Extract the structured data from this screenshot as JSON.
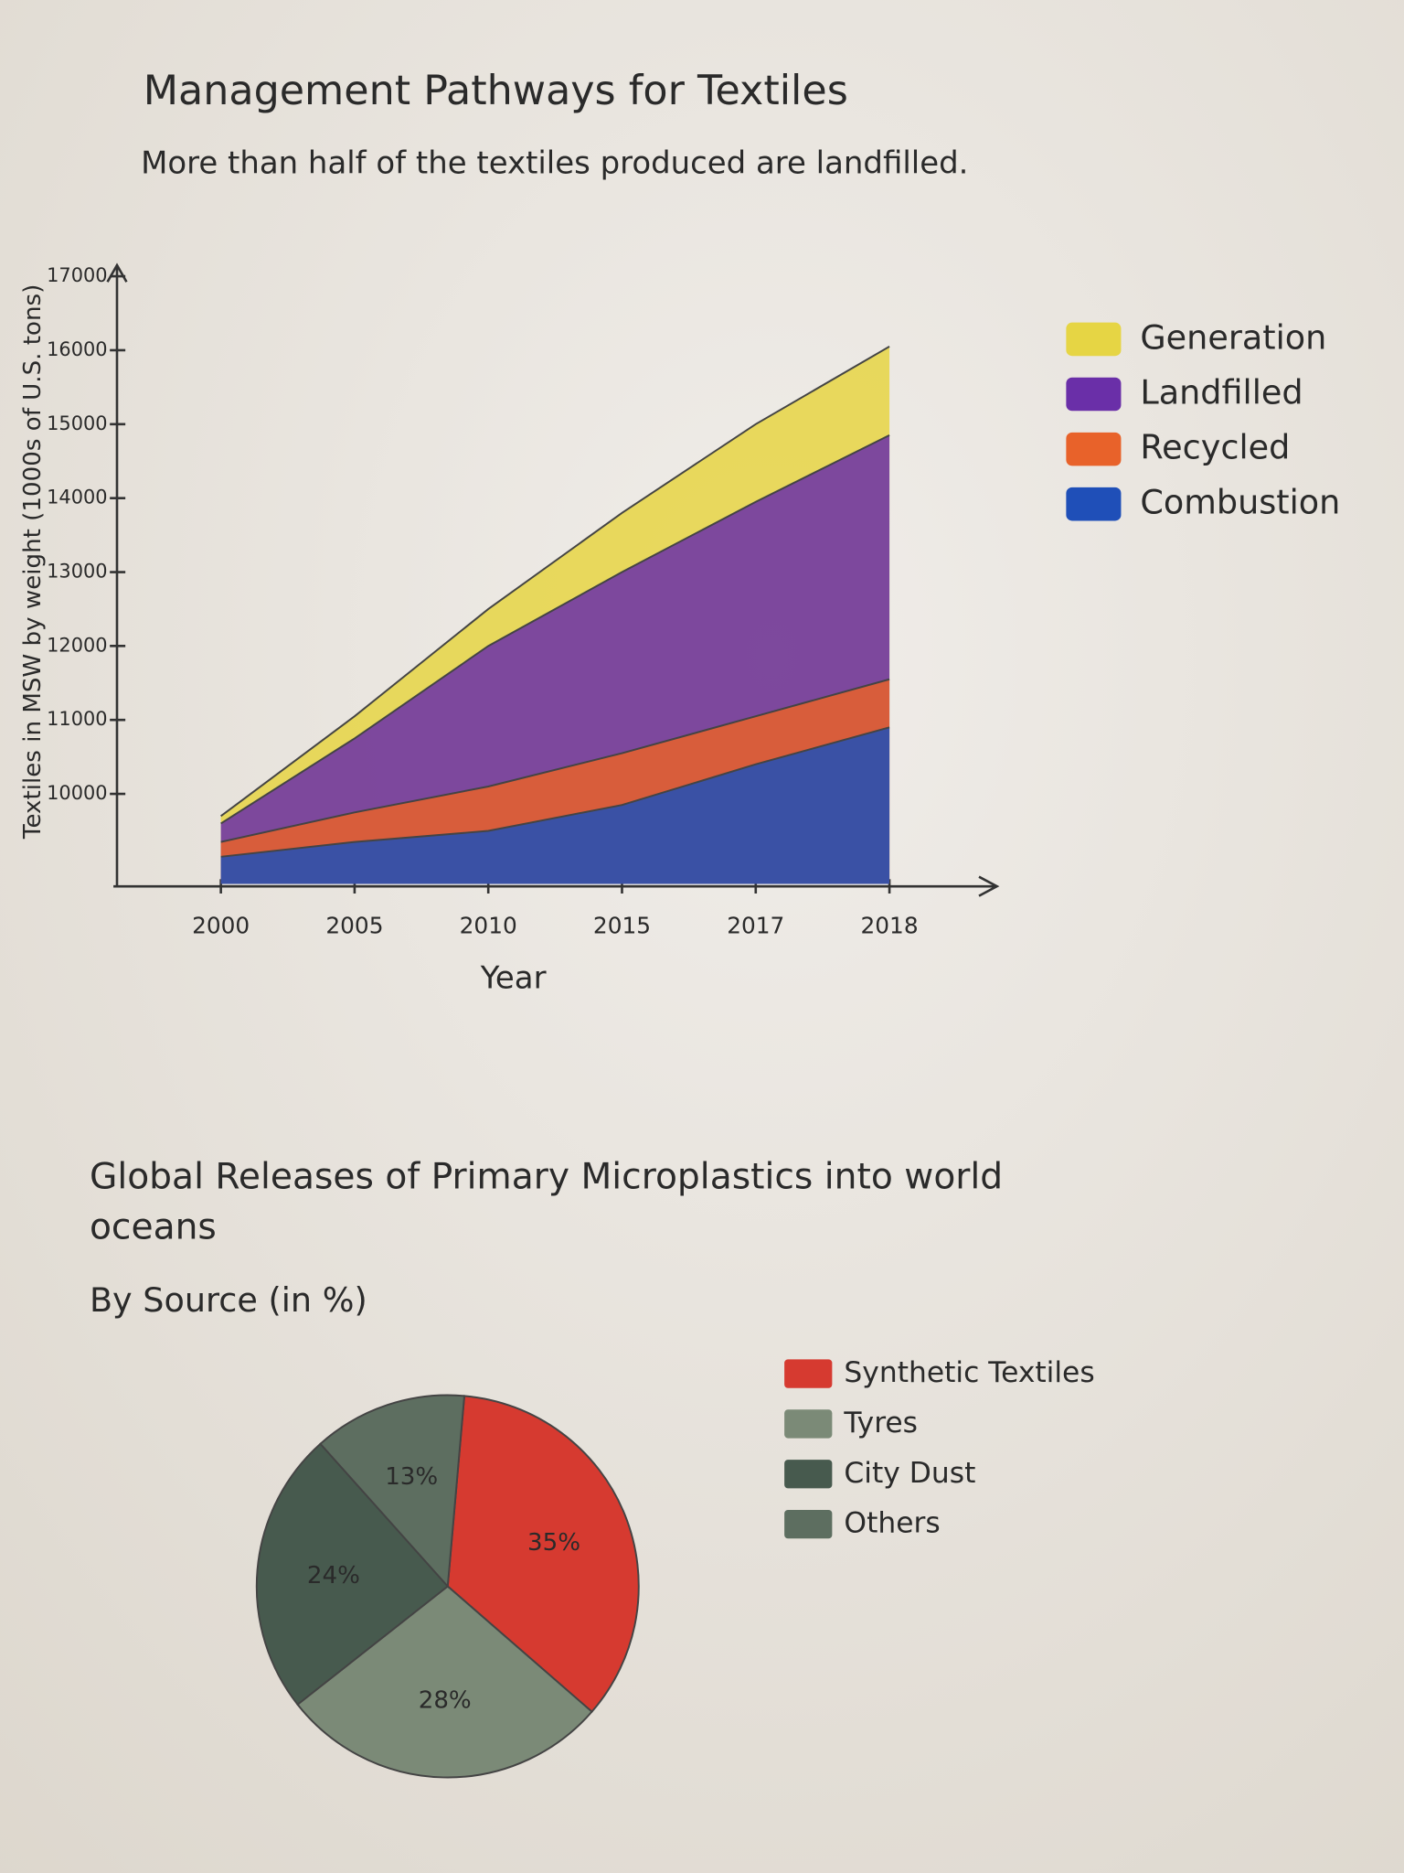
{
  "chart_data": [
    {
      "type": "area",
      "title": "Management Pathways for Textiles",
      "subtitle": "More than half of the textiles produced are landfilled.",
      "y_label": "Textiles in MSW by weight (1000s of U.S. tons)",
      "x_label": "Year",
      "categories": [
        "2000",
        "2005",
        "2010",
        "2015",
        "2017",
        "2018"
      ],
      "series": [
        {
          "name": "Generation",
          "color": "#e6d544",
          "values": [
            9700,
            11050,
            12500,
            13800,
            15000,
            16050
          ]
        },
        {
          "name": "Landfilled",
          "color": "#6a2fa8",
          "values": [
            9600,
            10750,
            12000,
            13000,
            13950,
            14850
          ]
        },
        {
          "name": "Recycled",
          "color": "#e8622a",
          "values": [
            9350,
            9750,
            10100,
            10550,
            11050,
            11550
          ]
        },
        {
          "name": "Combustion",
          "color": "#1f4fb8",
          "values": [
            9150,
            9350,
            9500,
            9850,
            10400,
            10900
          ]
        }
      ],
      "ylim": [
        8750,
        17150
      ],
      "yticks": [
        10000,
        11000,
        12000,
        13000,
        14000,
        15000,
        16000,
        17000
      ],
      "legend": "right"
    },
    {
      "type": "pie",
      "title": "Global Releases of Primary Microplastics into world oceans",
      "subtitle": "By Source (in %)",
      "categories": [
        "Synthetic Textiles",
        "Tyres",
        "City Dust",
        "Others"
      ],
      "values": [
        35,
        28,
        24,
        13
      ],
      "value_labels": [
        "35%",
        "28%",
        "24%",
        "13%"
      ],
      "colors": [
        "#d63a30",
        "#7b8a77",
        "#475a4e",
        "#5d6e60"
      ],
      "legend": "right"
    }
  ]
}
